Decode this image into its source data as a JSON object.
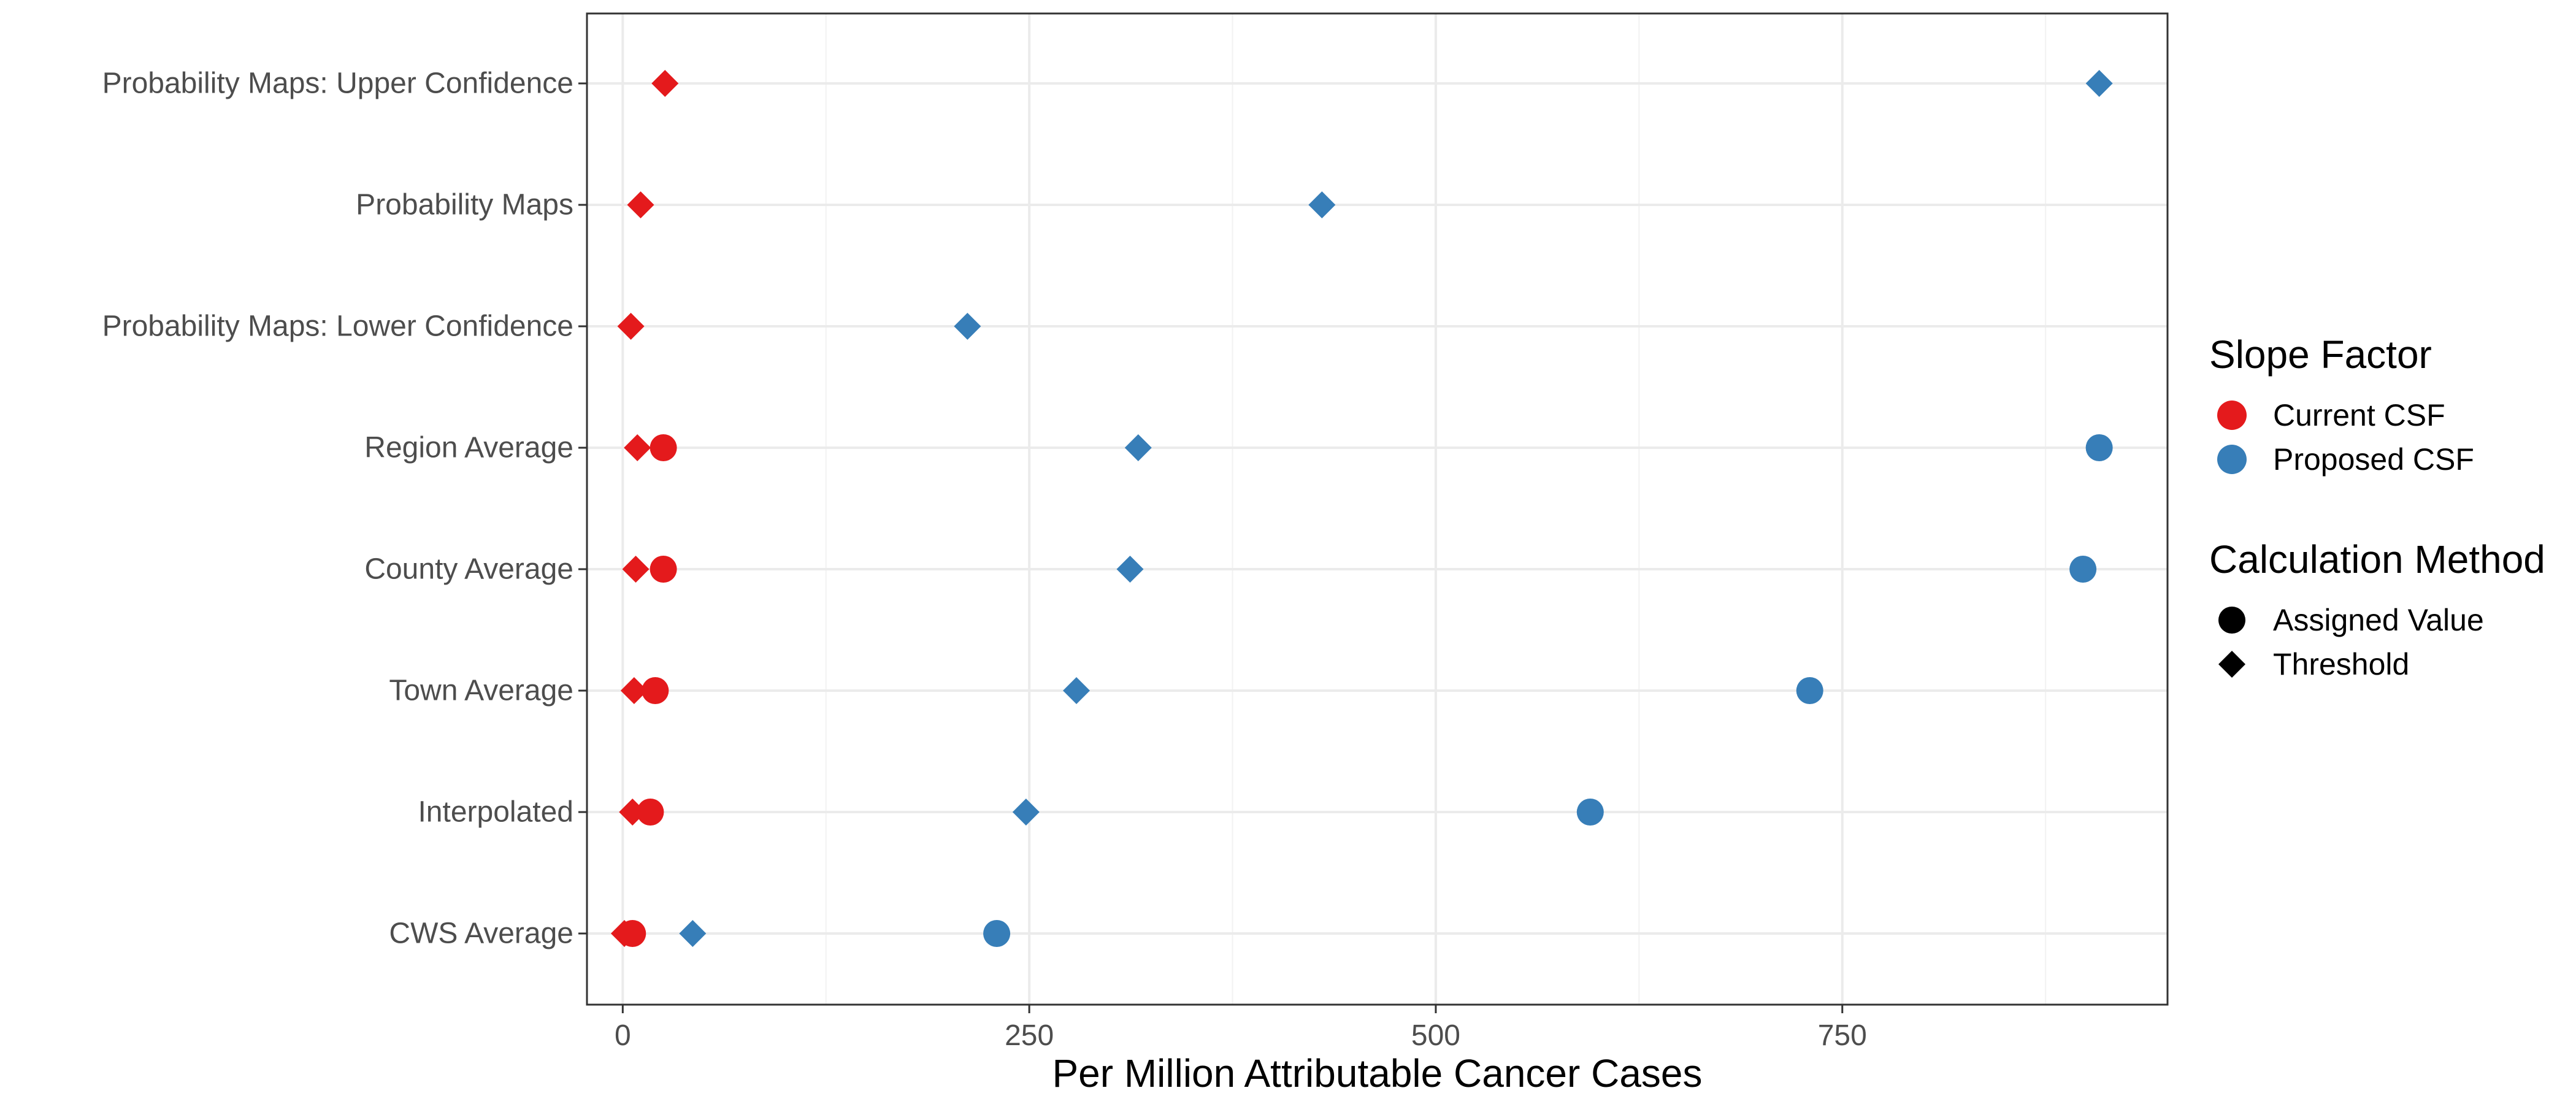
{
  "chart_data": {
    "type": "scatter",
    "xlabel": "Per Million Attributable Cancer Cases",
    "ylabel": "",
    "xlim": [
      -22,
      950
    ],
    "x_ticks": [
      0,
      250,
      500,
      750
    ],
    "x_tick_labels": [
      "0",
      "250",
      "500",
      "750"
    ],
    "x_minor_ticks": [
      125,
      375,
      625,
      875
    ],
    "categories": [
      "CWS Average",
      "Interpolated",
      "Town Average",
      "County Average",
      "Region Average",
      "Probability Maps: Lower Confidence",
      "Probability Maps",
      "Probability Maps: Upper Confidence"
    ],
    "grid": true,
    "legend_position": "right",
    "colors": {
      "Current CSF": "#e41a1c",
      "Proposed CSF": "#377eb8"
    },
    "legend": {
      "color_title": "Slope Factor",
      "color_entries": [
        "Current CSF",
        "Proposed CSF"
      ],
      "shape_title": "Calculation Method",
      "shape_entries": [
        "Assigned Value",
        "Threshold"
      ]
    },
    "series": [
      {
        "slope_factor": "Current CSF",
        "method": "Assigned Value",
        "points": [
          {
            "category": "CWS Average",
            "x": 6
          },
          {
            "category": "Interpolated",
            "x": 17
          },
          {
            "category": "Town Average",
            "x": 20
          },
          {
            "category": "County Average",
            "x": 25
          },
          {
            "category": "Region Average",
            "x": 25
          }
        ]
      },
      {
        "slope_factor": "Current CSF",
        "method": "Threshold",
        "points": [
          {
            "category": "CWS Average",
            "x": 1
          },
          {
            "category": "Interpolated",
            "x": 6
          },
          {
            "category": "Town Average",
            "x": 7
          },
          {
            "category": "County Average",
            "x": 8
          },
          {
            "category": "Region Average",
            "x": 9
          },
          {
            "category": "Probability Maps: Lower Confidence",
            "x": 5
          },
          {
            "category": "Probability Maps",
            "x": 11
          },
          {
            "category": "Probability Maps: Upper Confidence",
            "x": 26
          }
        ]
      },
      {
        "slope_factor": "Proposed CSF",
        "method": "Assigned Value",
        "points": [
          {
            "category": "CWS Average",
            "x": 230
          },
          {
            "category": "Interpolated",
            "x": 595
          },
          {
            "category": "Town Average",
            "x": 730
          },
          {
            "category": "County Average",
            "x": 898
          },
          {
            "category": "Region Average",
            "x": 908
          }
        ]
      },
      {
        "slope_factor": "Proposed CSF",
        "method": "Threshold",
        "points": [
          {
            "category": "CWS Average",
            "x": 43
          },
          {
            "category": "Interpolated",
            "x": 248
          },
          {
            "category": "Town Average",
            "x": 279
          },
          {
            "category": "County Average",
            "x": 312
          },
          {
            "category": "Region Average",
            "x": 317
          },
          {
            "category": "Probability Maps: Lower Confidence",
            "x": 212
          },
          {
            "category": "Probability Maps",
            "x": 430
          },
          {
            "category": "Probability Maps: Upper Confidence",
            "x": 908
          }
        ]
      }
    ]
  }
}
